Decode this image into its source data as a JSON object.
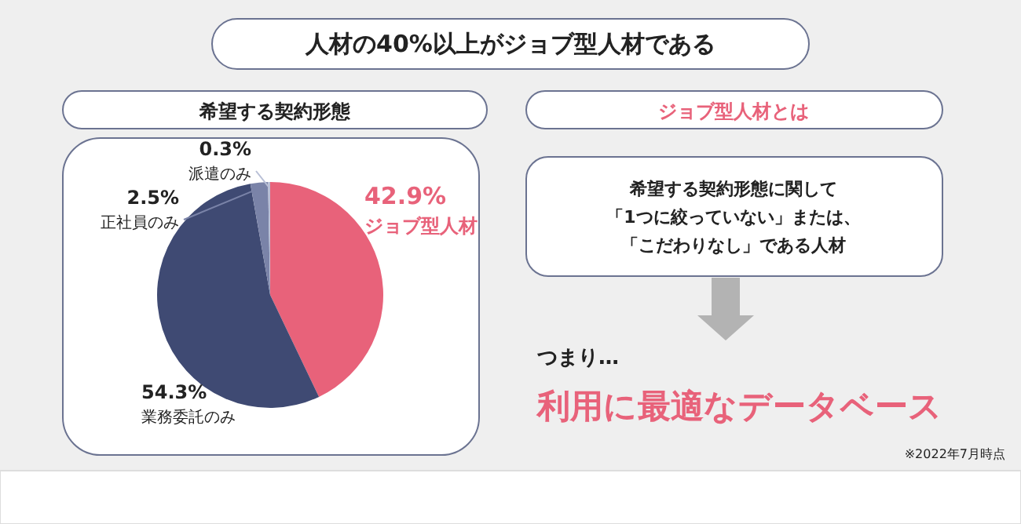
{
  "chart_data": {
    "type": "pie",
    "title": "人材の40%以上がジョブ型人材である",
    "subtitle": "希望する契約形態",
    "categories": [
      "ジョブ型人材",
      "業務委託のみ",
      "正社員のみ",
      "派遣のみ"
    ],
    "values": [
      42.9,
      54.3,
      2.5,
      0.3
    ],
    "colors": [
      "#e8627a",
      "#3f4a73",
      "#7a83a8",
      "#b8bfd6"
    ],
    "value_labels": [
      "42.9%",
      "54.3%",
      "2.5%",
      "0.3%"
    ],
    "annotations": [
      "ジョブ型人材とは",
      "希望する契約形態に関して",
      "「1つに絞っていない」または、",
      "「こだわりなし」である人材",
      "つまり…",
      "利用に最適なデータベース",
      "※2022年7月時点"
    ]
  }
}
